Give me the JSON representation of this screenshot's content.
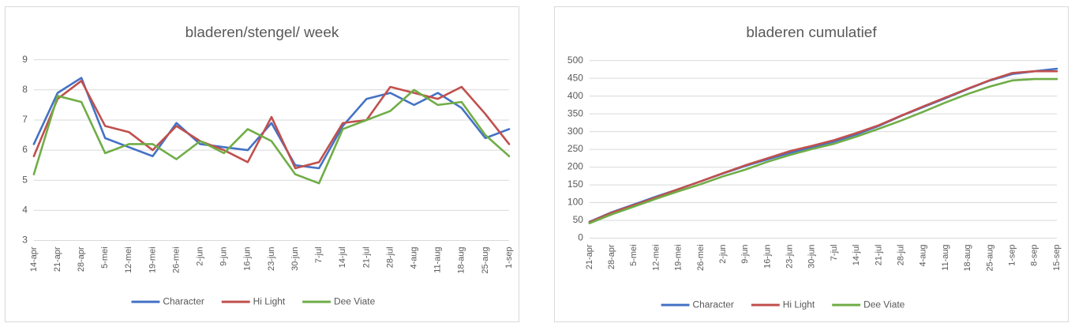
{
  "charts": [
    {
      "type": "line",
      "title": "bladeren/stengel/ week",
      "ylim": [
        3,
        9
      ],
      "yticks": [
        3,
        4,
        5,
        6,
        7,
        8,
        9
      ],
      "grid": true,
      "legend": "bottom",
      "categories": [
        "14-apr",
        "21-apr",
        "28-apr",
        "5-mei",
        "12-mei",
        "19-mei",
        "26-mei",
        "2-jun",
        "9-jun",
        "16-jun",
        "23-jun",
        "30-jun",
        "7-jul",
        "14-jul",
        "21-jul",
        "28-jul",
        "4-aug",
        "11-aug",
        "18-aug",
        "25-aug",
        "1-sep"
      ],
      "series": [
        {
          "name": "Character",
          "color": "#4472c4",
          "values": [
            6.2,
            7.9,
            8.4,
            6.4,
            6.1,
            5.8,
            6.9,
            6.2,
            6.1,
            6.0,
            6.9,
            5.5,
            5.4,
            6.8,
            7.7,
            7.9,
            7.5,
            7.9,
            7.4,
            6.4,
            6.7
          ]
        },
        {
          "name": "Hi Light",
          "color": "#c0504d",
          "values": [
            5.8,
            7.7,
            8.3,
            6.8,
            6.6,
            6.0,
            6.8,
            6.3,
            6.0,
            5.6,
            7.1,
            5.4,
            5.6,
            6.9,
            7.0,
            8.1,
            7.9,
            7.7,
            8.1,
            7.2,
            6.2
          ]
        },
        {
          "name": "Dee Viate",
          "color": "#70ad47",
          "values": [
            5.2,
            7.8,
            7.6,
            5.9,
            6.2,
            6.2,
            5.7,
            6.3,
            5.9,
            6.7,
            6.3,
            5.2,
            4.9,
            6.7,
            7.0,
            7.3,
            8.0,
            7.5,
            7.6,
            6.5,
            5.8
          ]
        }
      ]
    },
    {
      "type": "line",
      "title": "bladeren cumulatief",
      "ylim": [
        0,
        500
      ],
      "yticks": [
        0,
        50,
        100,
        150,
        200,
        250,
        300,
        350,
        400,
        450,
        500
      ],
      "grid": true,
      "legend": "bottom",
      "categories": [
        "21-apr",
        "28-apr",
        "5-mei",
        "12-mei",
        "19-mei",
        "26-mei",
        "2-jun",
        "9-jun",
        "16-jun",
        "23-jun",
        "30-jun",
        "7-jul",
        "14-jul",
        "21-jul",
        "28-jul",
        "4-aug",
        "11-aug",
        "18-aug",
        "25-aug",
        "1-sep",
        "8-sep",
        "15-sep"
      ],
      "series": [
        {
          "name": "Character",
          "color": "#4472c4",
          "values": [
            46,
            73,
            95,
            117,
            138,
            160,
            182,
            203,
            222,
            240,
            256,
            272,
            292,
            316,
            344,
            369,
            394,
            420,
            444,
            462,
            470,
            477
          ]
        },
        {
          "name": "Hi Light",
          "color": "#c0504d",
          "values": [
            45,
            72,
            93,
            115,
            138,
            160,
            183,
            205,
            225,
            245,
            260,
            276,
            296,
            318,
            345,
            371,
            396,
            421,
            445,
            465,
            470,
            470
          ]
        },
        {
          "name": "Dee Viate",
          "color": "#70ad47",
          "values": [
            42,
            67,
            89,
            111,
            132,
            152,
            174,
            193,
            215,
            234,
            251,
            266,
            286,
            308,
            331,
            356,
            382,
            406,
            427,
            444,
            448,
            448
          ]
        }
      ]
    }
  ]
}
